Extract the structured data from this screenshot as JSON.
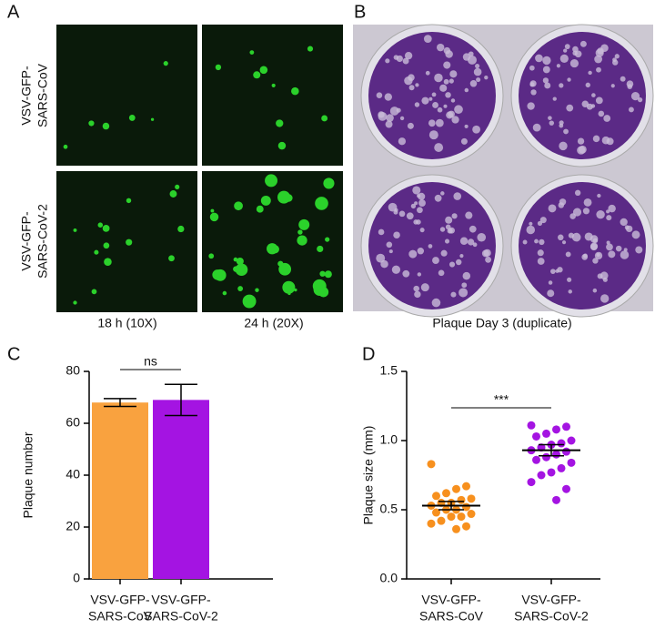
{
  "panels": {
    "a": {
      "letter": "A",
      "rows": [
        [
          "VSV-GFP-",
          "SARS-CoV"
        ],
        [
          "VSV-GFP-",
          "SARS-CoV-2"
        ]
      ],
      "columns": [
        "18 h (10X)",
        "24 h (20X)"
      ]
    },
    "b": {
      "letter": "B",
      "caption": "Plaque Day 3 (duplicate)"
    },
    "c": {
      "letter": "C"
    },
    "d": {
      "letter": "D"
    }
  },
  "chart_data": [
    {
      "type": "bar",
      "ylabel": "Plaque number",
      "categories": [
        [
          "VSV-GFP-",
          "SARS-CoV"
        ],
        [
          "VSV-GFP-",
          "SARS-CoV-2"
        ]
      ],
      "values": [
        68,
        69
      ],
      "errors": [
        1.5,
        6
      ],
      "colors": [
        "#f9a23f",
        "#a414e2"
      ],
      "ylim": [
        0,
        80
      ],
      "yticks": [
        0,
        20,
        40,
        60,
        80
      ],
      "annotation": "ns"
    },
    {
      "type": "scatter",
      "ylabel": "Plaque size (mm)",
      "categories": [
        [
          "VSV-GFP-",
          "SARS-CoV"
        ],
        [
          "VSV-GFP-",
          "SARS-CoV-2"
        ]
      ],
      "series": [
        {
          "color": "#f7901e",
          "values": [
            0.83,
            0.67,
            0.65,
            0.62,
            0.6,
            0.58,
            0.57,
            0.55,
            0.55,
            0.53,
            0.52,
            0.5,
            0.5,
            0.48,
            0.47,
            0.45,
            0.45,
            0.42,
            0.4,
            0.38,
            0.36
          ],
          "mean": 0.53,
          "sem": 0.03
        },
        {
          "color": "#a414e2",
          "values": [
            1.11,
            1.1,
            1.08,
            1.05,
            1.03,
            1.0,
            0.98,
            0.97,
            0.95,
            0.93,
            0.92,
            0.9,
            0.88,
            0.86,
            0.84,
            0.8,
            0.77,
            0.75,
            0.7,
            0.65,
            0.57
          ],
          "mean": 0.93,
          "sem": 0.04
        }
      ],
      "ylim": [
        0,
        1.5
      ],
      "yticks": [
        {
          "value": 0,
          "label": "0.0"
        },
        {
          "value": 0.5,
          "label": "0.5"
        },
        {
          "value": 1,
          "label": "1.0"
        },
        {
          "value": 1.5,
          "label": "1.5"
        }
      ],
      "annotation": "***"
    }
  ]
}
